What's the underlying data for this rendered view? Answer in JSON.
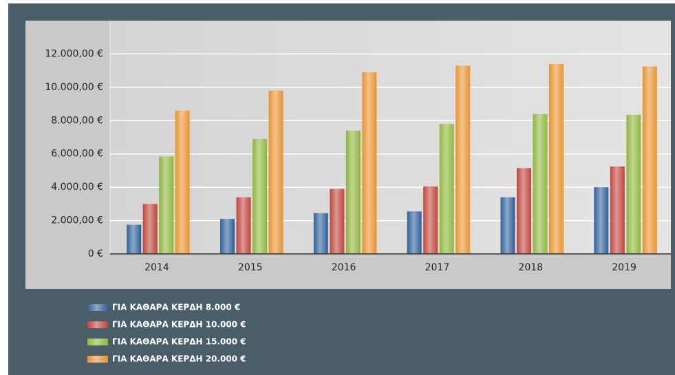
{
  "chart_data": {
    "type": "bar",
    "categories": [
      "2014",
      "2015",
      "2016",
      "2017",
      "2018",
      "2019"
    ],
    "series": [
      {
        "name": "ΓΙΑ ΚΑΘΑΡΑ ΚΕΡΔΗ 8.000 €",
        "color": "#2e5f9a",
        "values": [
          1750,
          2100,
          2450,
          2550,
          3400,
          4000
        ]
      },
      {
        "name": "ΓΙΑ ΚΑΘΑΡΑ ΚΕΡΔΗ 10.000 €",
        "color": "#c0443a",
        "values": [
          3000,
          3400,
          3900,
          4050,
          5150,
          5250
        ]
      },
      {
        "name": "ΓΙΑ ΚΑΘΑΡΑ ΚΕΡΔΗ 15.000 €",
        "color": "#8fb53c",
        "values": [
          5850,
          6900,
          7400,
          7800,
          8400,
          8350
        ]
      },
      {
        "name": "ΓΙΑ ΚΑΘΑΡΑ ΚΕΡΔΗ 20.000 €",
        "color": "#e8922e",
        "values": [
          8600,
          9800,
          10900,
          11300,
          11400,
          11250
        ]
      }
    ],
    "ylim": [
      0,
      14000
    ],
    "yticks": [
      {
        "value": 0,
        "label": "0 €"
      },
      {
        "value": 2000,
        "label": "2.000,00 €"
      },
      {
        "value": 4000,
        "label": "4.000,00 €"
      },
      {
        "value": 6000,
        "label": "6.000,00 €"
      },
      {
        "value": 8000,
        "label": "8.000,00 €"
      },
      {
        "value": 10000,
        "label": "10.000,00 €"
      },
      {
        "value": 12000,
        "label": "12.000,00 €"
      }
    ],
    "grid": true,
    "legend": "bottom-left"
  }
}
